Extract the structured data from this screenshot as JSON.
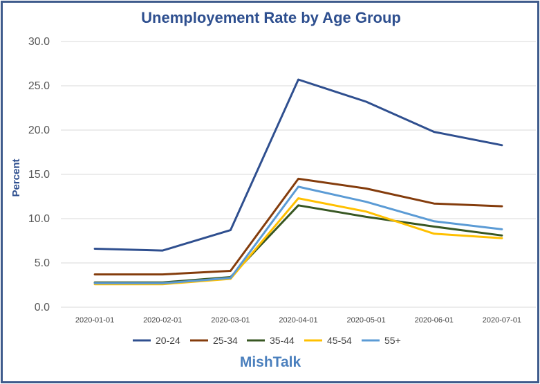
{
  "chart_data": {
    "type": "line",
    "title": "Unemployement Rate by Age Group",
    "xlabel": "",
    "ylabel": "Percent",
    "categories": [
      "2020-01-01",
      "2020-02-01",
      "2020-03-01",
      "2020-04-01",
      "2020-05-01",
      "2020-06-01",
      "2020-07-01"
    ],
    "ylim": [
      0,
      30
    ],
    "yticks": [
      "0.0",
      "5.0",
      "10.0",
      "15.0",
      "20.0",
      "25.0",
      "30.0"
    ],
    "grid": true,
    "legend_position": "bottom",
    "series": [
      {
        "name": "20-24",
        "color": "#2f4f8f",
        "values": [
          6.6,
          6.4,
          8.7,
          25.7,
          23.2,
          19.8,
          18.3
        ]
      },
      {
        "name": "25-34",
        "color": "#843c0c",
        "values": [
          3.7,
          3.7,
          4.1,
          14.5,
          13.4,
          11.7,
          11.4
        ]
      },
      {
        "name": "35-44",
        "color": "#385723",
        "values": [
          2.8,
          2.8,
          3.4,
          11.5,
          10.2,
          9.1,
          8.1
        ]
      },
      {
        "name": "45-54",
        "color": "#ffc000",
        "values": [
          2.6,
          2.6,
          3.2,
          12.3,
          10.8,
          8.3,
          7.8
        ]
      },
      {
        "name": "55+",
        "color": "#5b9bd5",
        "values": [
          2.7,
          2.7,
          3.3,
          13.6,
          11.9,
          9.7,
          8.8
        ]
      }
    ]
  },
  "watermark": "MishTalk"
}
